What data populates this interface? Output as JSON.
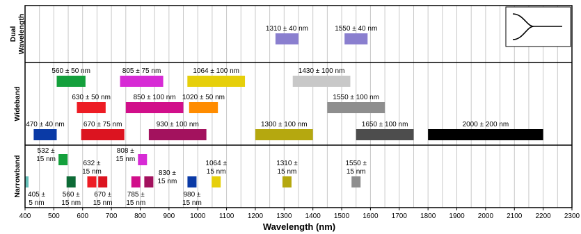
{
  "chart_data": {
    "type": "bar",
    "xlabel": "Wavelength (nm)",
    "xlim": [
      400,
      2300
    ],
    "xticks": [
      400,
      500,
      600,
      700,
      800,
      900,
      1000,
      1100,
      1200,
      1300,
      1400,
      1500,
      1600,
      1700,
      1800,
      1900,
      2000,
      2100,
      2200,
      2300
    ],
    "grid": true,
    "rows": [
      {
        "name": "Dual\nWavelength",
        "key": "dual"
      },
      {
        "name": "Wideband",
        "key": "wide"
      },
      {
        "name": "Narrowband",
        "key": "narrow"
      }
    ],
    "bands": [
      {
        "row": "dual",
        "center": 1310,
        "bw": 40,
        "label": "1310 ± 40 nm",
        "color": "#8a7fcf",
        "level": 0.5
      },
      {
        "row": "dual",
        "center": 1550,
        "bw": 40,
        "label": "1550 ± 40 nm",
        "color": "#8a7fcf",
        "level": 0.5
      },
      {
        "row": "wide",
        "center": 560,
        "bw": 50,
        "label": "560 ± 50 nm",
        "color": "#14a03c",
        "level": 0
      },
      {
        "row": "wide",
        "center": 805,
        "bw": 75,
        "label": "805 ± 75 nm",
        "color": "#d72bd5",
        "level": 0
      },
      {
        "row": "wide",
        "center": 1064,
        "bw": 100,
        "label": "1064 ± 100 nm",
        "color": "#e6cf0a",
        "level": 0
      },
      {
        "row": "wide",
        "center": 1430,
        "bw": 100,
        "label": "1430 ± 100 nm",
        "color": "#c8c8c8",
        "level": 0
      },
      {
        "row": "wide",
        "center": 630,
        "bw": 50,
        "label": "630 ± 50 nm",
        "color": "#ed1c24",
        "level": 1
      },
      {
        "row": "wide",
        "center": 850,
        "bw": 100,
        "label": "850 ± 100 nm",
        "color": "#d10f8a",
        "level": 1
      },
      {
        "row": "wide",
        "center": 1020,
        "bw": 50,
        "label": "1020 ± 50 nm",
        "color": "#ff8c00",
        "level": 1
      },
      {
        "row": "wide",
        "center": 1550,
        "bw": 100,
        "label": "1550 ± 100 nm",
        "color": "#8e8e8e",
        "level": 1
      },
      {
        "row": "wide",
        "center": 470,
        "bw": 40,
        "label": "470 ± 40 nm",
        "color": "#0a3aa6",
        "level": 2
      },
      {
        "row": "wide",
        "center": 670,
        "bw": 75,
        "label": "670 ± 75 nm",
        "color": "#dc1420",
        "level": 2
      },
      {
        "row": "wide",
        "center": 930,
        "bw": 100,
        "label": "930 ± 100 nm",
        "color": "#a3125e",
        "level": 2
      },
      {
        "row": "wide",
        "center": 1300,
        "bw": 100,
        "label": "1300 ± 100 nm",
        "color": "#b5a80f",
        "level": 2
      },
      {
        "row": "wide",
        "center": 1650,
        "bw": 100,
        "label": "1650 ± 100 nm",
        "color": "#4d4d4d",
        "level": 2
      },
      {
        "row": "wide",
        "center": 2000,
        "bw": 200,
        "label": "2000 ± 200 nm",
        "color": "#000000",
        "level": 2
      },
      {
        "row": "narrow",
        "center": 405,
        "bw": 5,
        "label": "405 ±\n5 nm",
        "color": "#66bfb8",
        "level": 1,
        "lpos": "below"
      },
      {
        "row": "narrow",
        "center": 532,
        "bw": 15,
        "label": "532 ±\n15 nm",
        "color": "#14a03c",
        "level": 0,
        "lpos": "left"
      },
      {
        "row": "narrow",
        "center": 560,
        "bw": 15,
        "label": "560 ±\n15 nm",
        "color": "#0d6b36",
        "level": 1,
        "lpos": "below"
      },
      {
        "row": "narrow",
        "center": 632,
        "bw": 15,
        "label": "632 ±\n15 nm",
        "color": "#ed1c24",
        "level": 1,
        "lpos": "above"
      },
      {
        "row": "narrow",
        "center": 670,
        "bw": 15,
        "label": "670 ±\n15 nm",
        "color": "#dc1420",
        "level": 1,
        "lpos": "below"
      },
      {
        "row": "narrow",
        "center": 785,
        "bw": 15,
        "label": "785 ±\n15 nm",
        "color": "#d10f8a",
        "level": 1,
        "lpos": "below"
      },
      {
        "row": "narrow",
        "center": 808,
        "bw": 15,
        "label": "808 ±\n15 nm",
        "color": "#d72bd5",
        "level": 0,
        "lpos": "left"
      },
      {
        "row": "narrow",
        "center": 830,
        "bw": 15,
        "label": "830 ±\n15 nm",
        "color": "#a3125e",
        "level": 1,
        "lpos": "right"
      },
      {
        "row": "narrow",
        "center": 980,
        "bw": 15,
        "label": "980 ±\n15 nm",
        "color": "#0a3aa6",
        "level": 1,
        "lpos": "below"
      },
      {
        "row": "narrow",
        "center": 1064,
        "bw": 15,
        "label": "1064 ±\n15 nm",
        "color": "#e6cf0a",
        "level": 1,
        "lpos": "above"
      },
      {
        "row": "narrow",
        "center": 1310,
        "bw": 15,
        "label": "1310 ±\n15 nm",
        "color": "#b5a80f",
        "level": 1,
        "lpos": "above"
      },
      {
        "row": "narrow",
        "center": 1550,
        "bw": 15,
        "label": "1550 ±\n15 nm",
        "color": "#8e8e8e",
        "level": 1,
        "lpos": "above"
      }
    ]
  }
}
